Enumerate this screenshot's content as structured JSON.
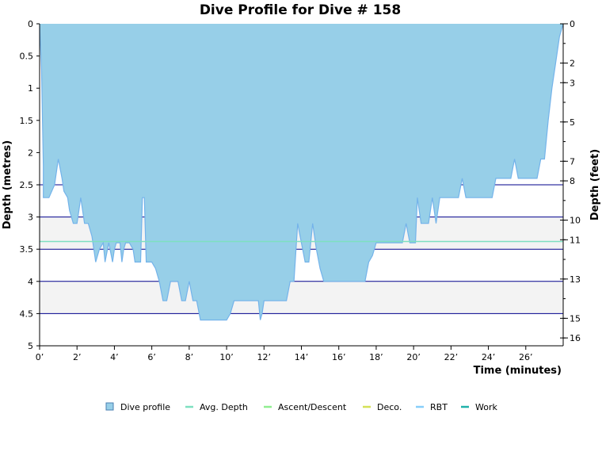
{
  "chart_data": {
    "type": "area",
    "title": "Dive Profile for Dive # 158",
    "xlabel": "Time (minutes)",
    "ylabel": "Depth (metres)",
    "y2label": "Depth (feet)",
    "xlim": [
      0,
      28
    ],
    "ylim": [
      0,
      5
    ],
    "y2lim": [
      0,
      16.4
    ],
    "x_ticks": [
      {
        "value": 0,
        "label": "0’"
      },
      {
        "value": 2,
        "label": "2’"
      },
      {
        "value": 4,
        "label": "4’"
      },
      {
        "value": 6,
        "label": "6’"
      },
      {
        "value": 8,
        "label": "8’"
      },
      {
        "value": 10,
        "label": "10’"
      },
      {
        "value": 12,
        "label": "12’"
      },
      {
        "value": 14,
        "label": "14’"
      },
      {
        "value": 16,
        "label": "16’"
      },
      {
        "value": 18,
        "label": "18’"
      },
      {
        "value": 20,
        "label": "20’"
      },
      {
        "value": 22,
        "label": "22’"
      },
      {
        "value": 24,
        "label": "24’"
      },
      {
        "value": 26,
        "label": "26’"
      }
    ],
    "y_ticks": [
      {
        "value": 0,
        "label": "0"
      },
      {
        "value": 0.5,
        "label": "0.5"
      },
      {
        "value": 1,
        "label": "1"
      },
      {
        "value": 1.5,
        "label": "1.5"
      },
      {
        "value": 2,
        "label": "2"
      },
      {
        "value": 2.5,
        "label": "2.5"
      },
      {
        "value": 3,
        "label": "3"
      },
      {
        "value": 3.5,
        "label": "3.5"
      },
      {
        "value": 4,
        "label": "4"
      },
      {
        "value": 4.5,
        "label": "4.5"
      },
      {
        "value": 5,
        "label": "5"
      }
    ],
    "y2_ticks": [
      {
        "value": 0,
        "label": "0"
      },
      {
        "value": 2,
        "label": "2"
      },
      {
        "value": 3,
        "label": "3"
      },
      {
        "value": 5,
        "label": "5"
      },
      {
        "value": 7,
        "label": "7"
      },
      {
        "value": 8,
        "label": "8"
      },
      {
        "value": 10,
        "label": "10"
      },
      {
        "value": 11,
        "label": "11"
      },
      {
        "value": 13,
        "label": "13"
      },
      {
        "value": 15,
        "label": "15"
      },
      {
        "value": 16,
        "label": "16"
      }
    ],
    "grid_lines_depth": [
      2.5,
      3,
      3.5,
      4,
      4.5
    ],
    "band_ranges": [
      [
        3,
        3.5
      ],
      [
        4,
        4.5
      ]
    ],
    "avg_depth": 3.38,
    "colors": {
      "area_fill": "#97cfe8",
      "area_line": "#74b3ea",
      "grid": "#00008b",
      "band": "#f3f3f3",
      "avg_depth": "#7ee0c0",
      "ascent_descent": "#90ee90",
      "deco": "#d4e157",
      "rbt": "#87cefa",
      "work": "#20b2aa"
    },
    "series": [
      {
        "name": "Dive profile",
        "x": [
          0,
          0.1,
          0.2,
          0.2,
          0.5,
          0.8,
          1.0,
          1.2,
          1.3,
          1.5,
          1.6,
          1.8,
          1.9,
          2.0,
          2.1,
          2.2,
          2.4,
          2.6,
          2.8,
          3.0,
          3.2,
          3.4,
          3.5,
          3.7,
          3.9,
          4.0,
          4.1,
          4.3,
          4.4,
          4.5,
          4.6,
          4.8,
          5.0,
          5.1,
          5.3,
          5.4,
          5.5,
          5.6,
          5.7,
          6.0,
          6.2,
          6.4,
          6.6,
          6.8,
          7.0,
          7.2,
          7.4,
          7.6,
          7.8,
          8.0,
          8.2,
          8.4,
          8.6,
          8.8,
          9.0,
          10.0,
          10.2,
          10.4,
          10.6,
          11.7,
          11.8,
          11.9,
          12.0,
          12.2,
          13.2,
          13.4,
          13.6,
          13.8,
          14.0,
          14.2,
          14.4,
          14.6,
          14.8,
          15.0,
          15.2,
          15.4,
          15.6,
          17.4,
          17.6,
          17.8,
          18.0,
          18.2,
          19.2,
          19.4,
          19.6,
          19.8,
          19.9,
          20.1,
          20.2,
          20.4,
          20.6,
          20.8,
          21.0,
          21.2,
          21.4,
          21.6,
          21.8,
          22.4,
          22.6,
          22.8,
          24.2,
          24.4,
          24.8,
          25.2,
          25.4,
          25.6,
          25.8,
          26.0,
          26.6,
          26.8,
          27.0,
          27.2,
          27.4,
          27.6,
          27.8,
          28.0
        ],
        "depth": [
          0,
          0.7,
          2.2,
          2.7,
          2.7,
          2.5,
          2.1,
          2.4,
          2.6,
          2.7,
          2.9,
          3.1,
          3.1,
          3.1,
          2.9,
          2.7,
          3.1,
          3.1,
          3.3,
          3.7,
          3.5,
          3.4,
          3.7,
          3.4,
          3.7,
          3.5,
          3.4,
          3.4,
          3.7,
          3.5,
          3.4,
          3.4,
          3.5,
          3.7,
          3.7,
          3.7,
          2.7,
          2.7,
          3.7,
          3.7,
          3.8,
          4.0,
          4.3,
          4.3,
          4.0,
          4.0,
          4.0,
          4.3,
          4.3,
          4.0,
          4.3,
          4.3,
          4.6,
          4.6,
          4.6,
          4.6,
          4.5,
          4.3,
          4.3,
          4.3,
          4.6,
          4.5,
          4.3,
          4.3,
          4.3,
          4.0,
          4.0,
          3.1,
          3.4,
          3.7,
          3.7,
          3.1,
          3.5,
          3.8,
          4.0,
          4.0,
          4.0,
          4.0,
          3.7,
          3.6,
          3.4,
          3.4,
          3.4,
          3.4,
          3.1,
          3.4,
          3.4,
          3.4,
          2.7,
          3.1,
          3.1,
          3.1,
          2.7,
          3.1,
          2.7,
          2.7,
          2.7,
          2.7,
          2.4,
          2.7,
          2.7,
          2.4,
          2.4,
          2.4,
          2.1,
          2.4,
          2.4,
          2.4,
          2.4,
          2.1,
          2.1,
          1.5,
          1.0,
          0.6,
          0.2,
          0
        ]
      }
    ],
    "legend": {
      "position": "bottom-center",
      "items": [
        {
          "label": "Dive profile",
          "color": "#97cfe8",
          "swatch": "box"
        },
        {
          "label": "Avg. Depth",
          "color": "#7ee0c0",
          "swatch": "line"
        },
        {
          "label": "Ascent/Descent",
          "color": "#90ee90",
          "swatch": "line"
        },
        {
          "label": "Deco.",
          "color": "#d4e157",
          "swatch": "line"
        },
        {
          "label": "RBT",
          "color": "#87cefa",
          "swatch": "line"
        },
        {
          "label": "Work",
          "color": "#20b2aa",
          "swatch": "line"
        }
      ]
    }
  }
}
